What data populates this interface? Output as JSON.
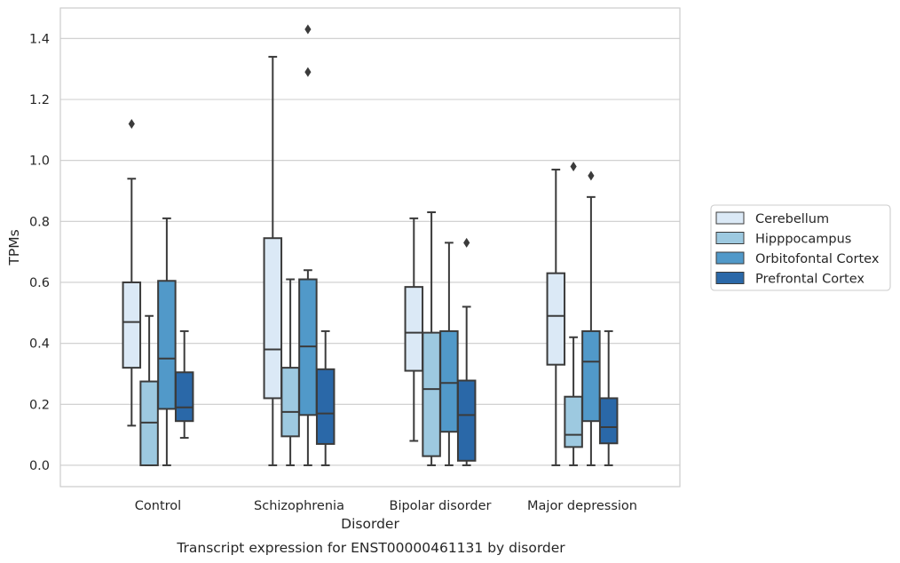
{
  "caption": "Transcript expression for ENST00000461131 by disorder",
  "chart_data": {
    "type": "box",
    "xlabel": "Disorder",
    "ylabel": "TPMs",
    "ylim": [
      -0.07,
      1.5
    ],
    "yticks": [
      "0.0",
      "0.2",
      "0.4",
      "0.6",
      "0.8",
      "1.0",
      "1.2",
      "1.4"
    ],
    "ytick_values": [
      0,
      0.2,
      0.4,
      0.6,
      0.8,
      1.0,
      1.2,
      1.4
    ],
    "grid": "horizontal",
    "legend_position": "right",
    "categories": [
      "Control",
      "Schizophrenia",
      "Bipolar disorder",
      "Major depression"
    ],
    "series": [
      {
        "name": "Cerebellum",
        "color": "#dbe9f6",
        "boxes": [
          {
            "whisker_low": 0.13,
            "q1": 0.32,
            "median": 0.47,
            "q3": 0.6,
            "whisker_high": 0.94,
            "outliers": [
              1.12
            ]
          },
          {
            "whisker_low": 0.0,
            "q1": 0.22,
            "median": 0.38,
            "q3": 0.745,
            "whisker_high": 1.34,
            "outliers": []
          },
          {
            "whisker_low": 0.08,
            "q1": 0.31,
            "median": 0.435,
            "q3": 0.585,
            "whisker_high": 0.81,
            "outliers": []
          },
          {
            "whisker_low": 0.0,
            "q1": 0.33,
            "median": 0.49,
            "q3": 0.63,
            "whisker_high": 0.97,
            "outliers": []
          }
        ]
      },
      {
        "name": "Hipppocampus",
        "color": "#9dc9e0",
        "boxes": [
          {
            "whisker_low": 0.0,
            "q1": 0.0,
            "median": 0.14,
            "q3": 0.275,
            "whisker_high": 0.49,
            "outliers": []
          },
          {
            "whisker_low": 0.0,
            "q1": 0.095,
            "median": 0.175,
            "q3": 0.32,
            "whisker_high": 0.61,
            "outliers": []
          },
          {
            "whisker_low": 0.0,
            "q1": 0.03,
            "median": 0.25,
            "q3": 0.435,
            "whisker_high": 0.83,
            "outliers": []
          },
          {
            "whisker_low": 0.0,
            "q1": 0.06,
            "median": 0.1,
            "q3": 0.225,
            "whisker_high": 0.42,
            "outliers": [
              0.98
            ]
          }
        ]
      },
      {
        "name": "Orbitofontal Cortex",
        "color": "#5199c9",
        "boxes": [
          {
            "whisker_low": 0.0,
            "q1": 0.185,
            "median": 0.35,
            "q3": 0.605,
            "whisker_high": 0.81,
            "outliers": []
          },
          {
            "whisker_low": 0.0,
            "q1": 0.165,
            "median": 0.39,
            "q3": 0.61,
            "whisker_high": 0.64,
            "outliers": [
              1.29,
              1.43
            ]
          },
          {
            "whisker_low": 0.0,
            "q1": 0.11,
            "median": 0.27,
            "q3": 0.44,
            "whisker_high": 0.73,
            "outliers": []
          },
          {
            "whisker_low": 0.0,
            "q1": 0.145,
            "median": 0.34,
            "q3": 0.44,
            "whisker_high": 0.88,
            "outliers": [
              0.95
            ]
          }
        ]
      },
      {
        "name": "Prefrontal Cortex",
        "color": "#2a68a8",
        "boxes": [
          {
            "whisker_low": 0.09,
            "q1": 0.145,
            "median": 0.19,
            "q3": 0.305,
            "whisker_high": 0.44,
            "outliers": []
          },
          {
            "whisker_low": 0.0,
            "q1": 0.07,
            "median": 0.17,
            "q3": 0.315,
            "whisker_high": 0.44,
            "outliers": []
          },
          {
            "whisker_low": 0.0,
            "q1": 0.015,
            "median": 0.165,
            "q3": 0.278,
            "whisker_high": 0.52,
            "outliers": [
              0.73
            ]
          },
          {
            "whisker_low": 0.0,
            "q1": 0.072,
            "median": 0.125,
            "q3": 0.22,
            "whisker_high": 0.44,
            "outliers": []
          }
        ]
      }
    ]
  }
}
